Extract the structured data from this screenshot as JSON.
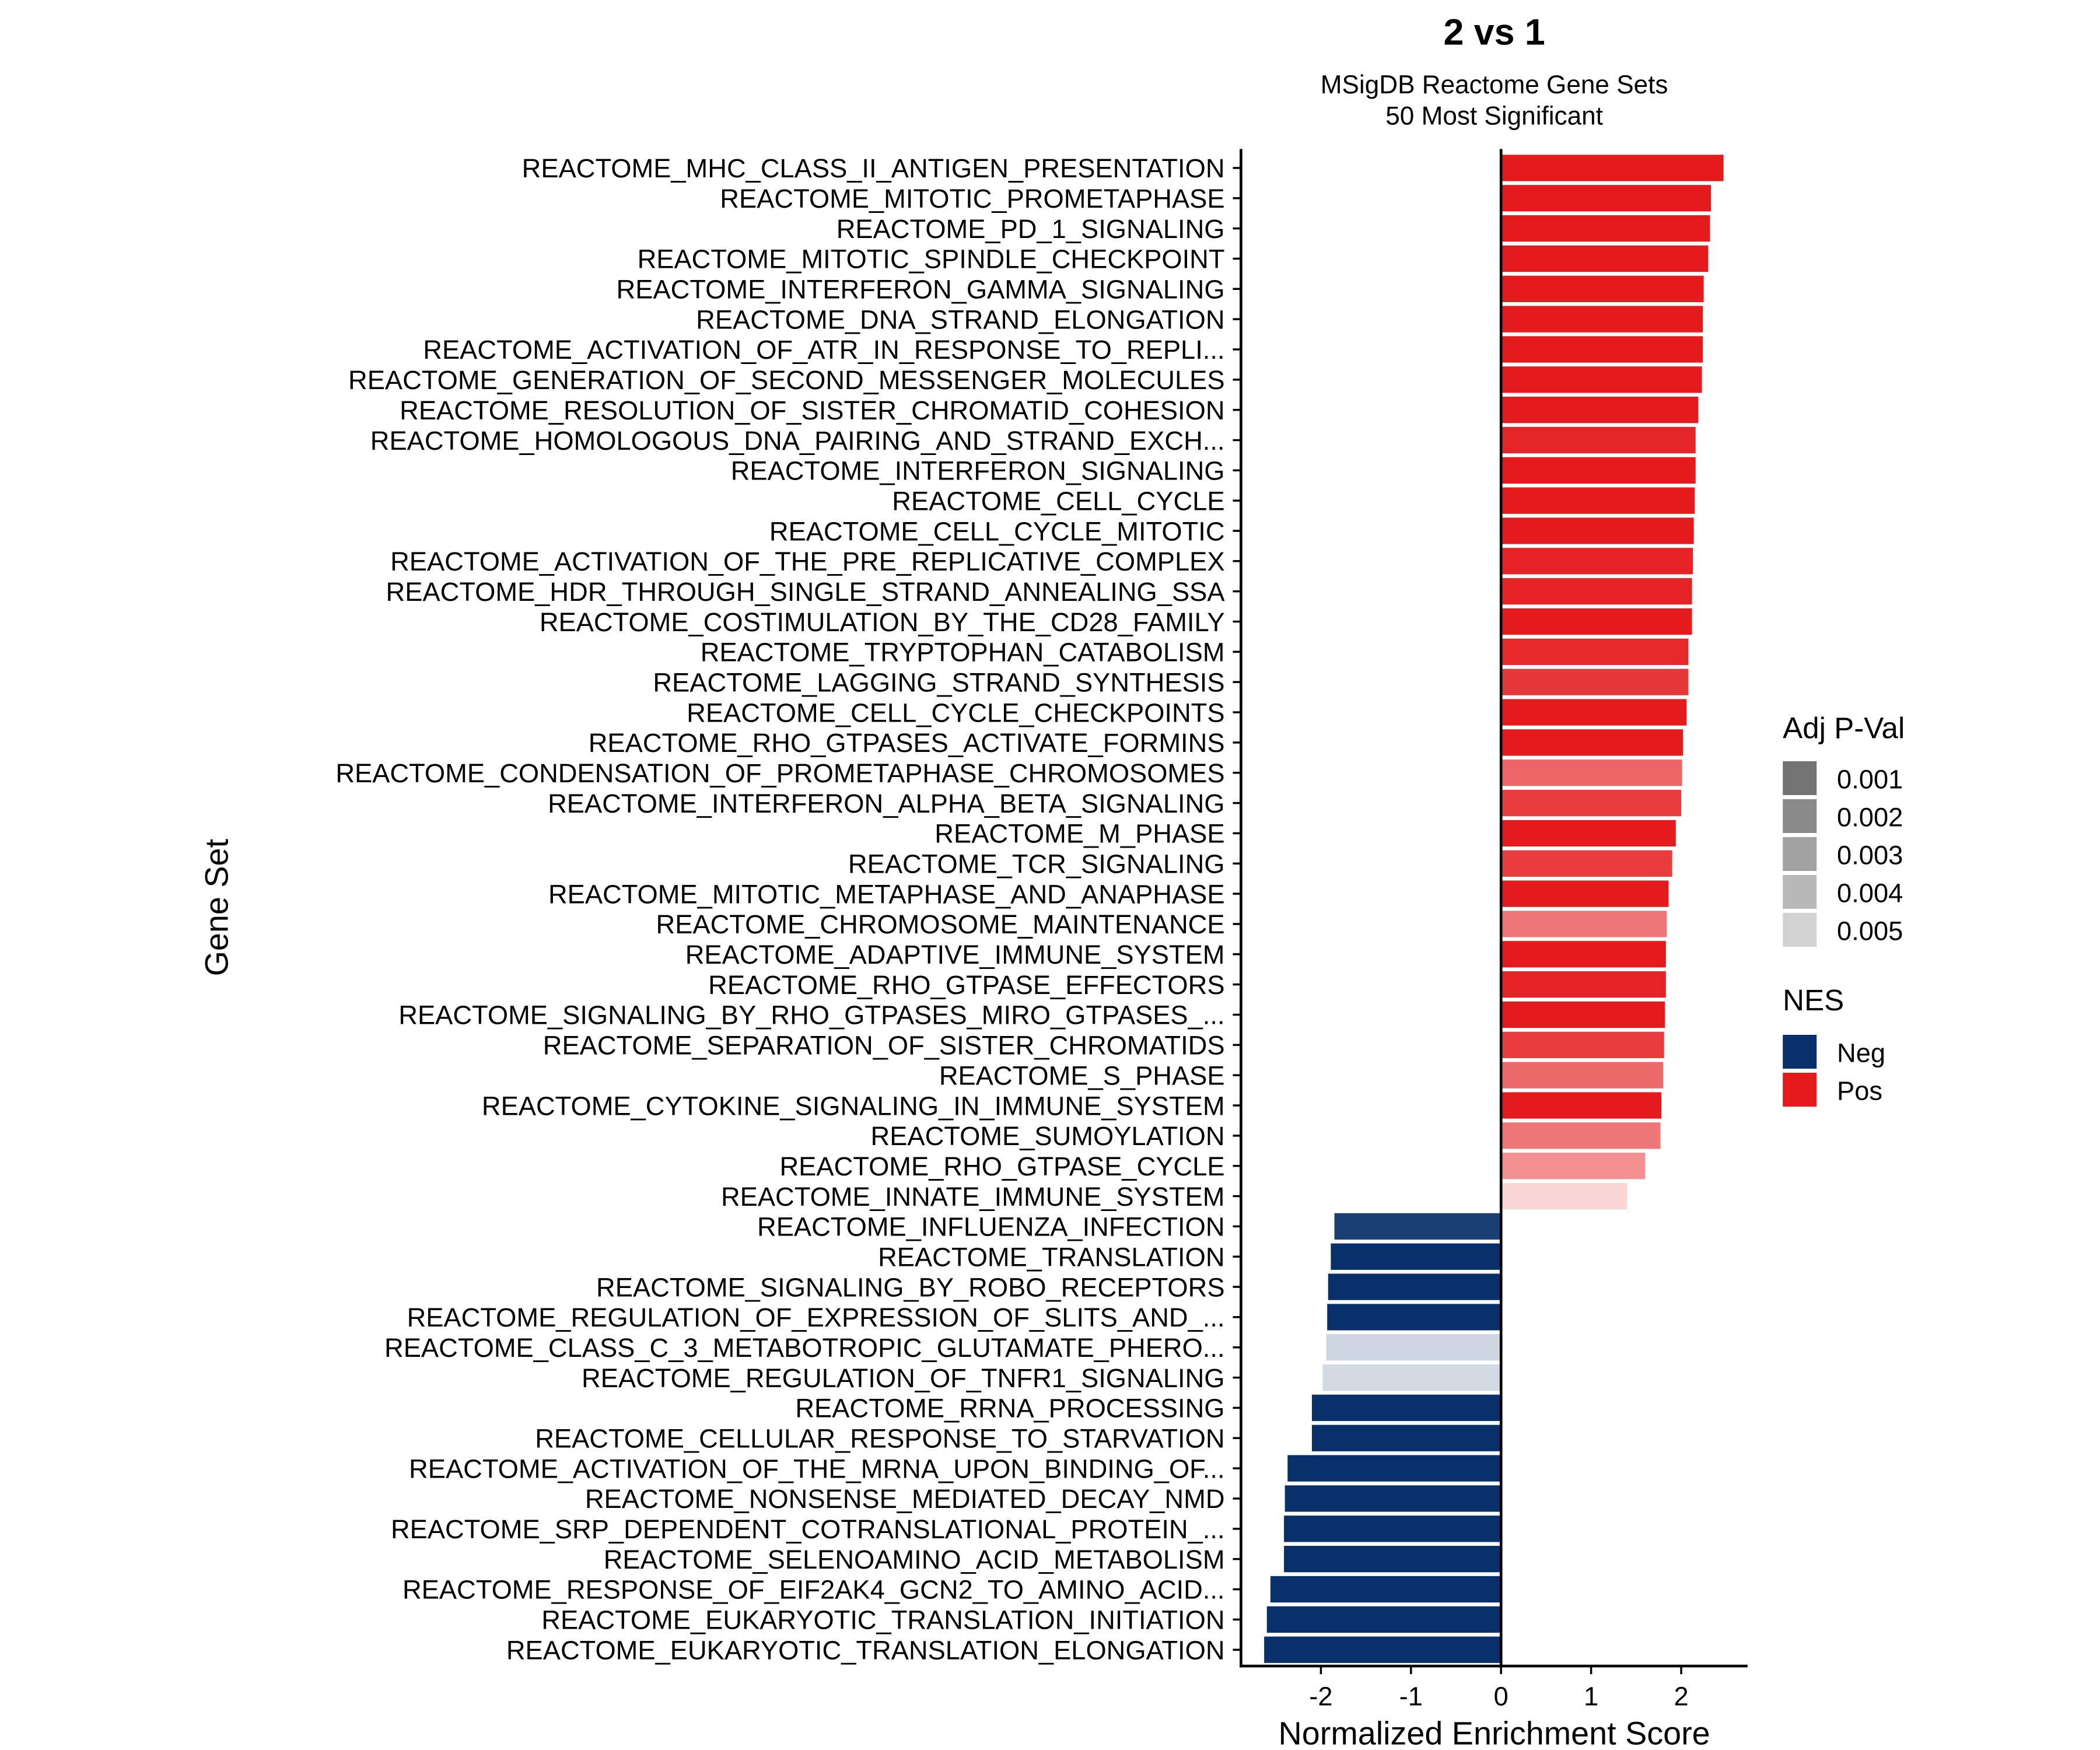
{
  "chart_data": {
    "type": "bar",
    "orientation": "horizontal",
    "title": "2 vs 1",
    "subtitle": [
      "MSigDB Reactome Gene Sets",
      "50 Most Significant"
    ],
    "xlabel": "Normalized Enrichment Score",
    "ylabel": "Gene Set",
    "xlim": [
      -2.9,
      2.7
    ],
    "xticks": [
      -2,
      -1,
      0,
      1,
      2
    ],
    "xtick_labels": [
      "-2",
      "-1",
      "0",
      "1",
      "2"
    ],
    "grid": false,
    "colors": {
      "Neg": "#08306b",
      "Pos": "#e41a1c"
    },
    "legend_padj": {
      "title": "Adj P-Val",
      "entries": [
        {
          "label": "0.001",
          "color": "#737373"
        },
        {
          "label": "0.002",
          "color": "#8a8a8a"
        },
        {
          "label": "0.003",
          "color": "#a2a2a2"
        },
        {
          "label": "0.004",
          "color": "#b9b9b9"
        },
        {
          "label": "0.005",
          "color": "#d2d2d2"
        }
      ],
      "placement": "right"
    },
    "legend_nes": {
      "title": "NES",
      "entries": [
        {
          "label": "Neg",
          "color": "#08306b"
        },
        {
          "label": "Pos",
          "color": "#e41a1c"
        }
      ],
      "placement": "right"
    },
    "bars": [
      {
        "label": "REACTOME_MHC_CLASS_II_ANTIGEN_PRESENTATION",
        "nes": 2.47,
        "padj": 0.0005
      },
      {
        "label": "REACTOME_MITOTIC_PROMETAPHASE",
        "nes": 2.33,
        "padj": 0.0005
      },
      {
        "label": "REACTOME_PD_1_SIGNALING",
        "nes": 2.32,
        "padj": 0.0005
      },
      {
        "label": "REACTOME_MITOTIC_SPINDLE_CHECKPOINT",
        "nes": 2.3,
        "padj": 0.0005
      },
      {
        "label": "REACTOME_INTERFERON_GAMMA_SIGNALING",
        "nes": 2.25,
        "padj": 0.0005
      },
      {
        "label": "REACTOME_DNA_STRAND_ELONGATION",
        "nes": 2.24,
        "padj": 0.0005
      },
      {
        "label": "REACTOME_ACTIVATION_OF_ATR_IN_RESPONSE_TO_REPLI...",
        "nes": 2.24,
        "padj": 0.0005
      },
      {
        "label": "REACTOME_GENERATION_OF_SECOND_MESSENGER_MOLECULES",
        "nes": 2.23,
        "padj": 0.0005
      },
      {
        "label": "REACTOME_RESOLUTION_OF_SISTER_CHROMATID_COHESION",
        "nes": 2.19,
        "padj": 0.0005
      },
      {
        "label": "REACTOME_HOMOLOGOUS_DNA_PAIRING_AND_STRAND_EXCH...",
        "nes": 2.16,
        "padj": 0.0008
      },
      {
        "label": "REACTOME_INTERFERON_SIGNALING",
        "nes": 2.16,
        "padj": 0.0005
      },
      {
        "label": "REACTOME_CELL_CYCLE",
        "nes": 2.15,
        "padj": 0.0005
      },
      {
        "label": "REACTOME_CELL_CYCLE_MITOTIC",
        "nes": 2.14,
        "padj": 0.0005
      },
      {
        "label": "REACTOME_ACTIVATION_OF_THE_PRE_REPLICATIVE_COMPLEX",
        "nes": 2.13,
        "padj": 0.0007
      },
      {
        "label": "REACTOME_HDR_THROUGH_SINGLE_STRAND_ANNEALING_SSA",
        "nes": 2.12,
        "padj": 0.0007
      },
      {
        "label": "REACTOME_COSTIMULATION_BY_THE_CD28_FAMILY",
        "nes": 2.12,
        "padj": 0.0005
      },
      {
        "label": "REACTOME_TRYPTOPHAN_CATABOLISM",
        "nes": 2.08,
        "padj": 0.0009
      },
      {
        "label": "REACTOME_LAGGING_STRAND_SYNTHESIS",
        "nes": 2.08,
        "padj": 0.0012
      },
      {
        "label": "REACTOME_CELL_CYCLE_CHECKPOINTS",
        "nes": 2.06,
        "padj": 0.0005
      },
      {
        "label": "REACTOME_RHO_GTPASES_ACTIVATE_FORMINS",
        "nes": 2.02,
        "padj": 0.0005
      },
      {
        "label": "REACTOME_CONDENSATION_OF_PROMETAPHASE_CHROMOSOMES",
        "nes": 2.01,
        "padj": 0.0023
      },
      {
        "label": "REACTOME_INTERFERON_ALPHA_BETA_SIGNALING",
        "nes": 2.0,
        "padj": 0.0013
      },
      {
        "label": "REACTOME_M_PHASE",
        "nes": 1.94,
        "padj": 0.0005
      },
      {
        "label": "REACTOME_TCR_SIGNALING",
        "nes": 1.9,
        "padj": 0.0013
      },
      {
        "label": "REACTOME_MITOTIC_METAPHASE_AND_ANAPHASE",
        "nes": 1.86,
        "padj": 0.0005
      },
      {
        "label": "REACTOME_CHROMOSOME_MAINTENANCE",
        "nes": 1.84,
        "padj": 0.0027
      },
      {
        "label": "REACTOME_ADAPTIVE_IMMUNE_SYSTEM",
        "nes": 1.83,
        "padj": 0.0005
      },
      {
        "label": "REACTOME_RHO_GTPASE_EFFECTORS",
        "nes": 1.83,
        "padj": 0.0007
      },
      {
        "label": "REACTOME_SIGNALING_BY_RHO_GTPASES_MIRO_GTPASES_...",
        "nes": 1.82,
        "padj": 0.0005
      },
      {
        "label": "REACTOME_SEPARATION_OF_SISTER_CHROMATIDS",
        "nes": 1.81,
        "padj": 0.0013
      },
      {
        "label": "REACTOME_S_PHASE",
        "nes": 1.8,
        "padj": 0.0024
      },
      {
        "label": "REACTOME_CYTOKINE_SIGNALING_IN_IMMUNE_SYSTEM",
        "nes": 1.78,
        "padj": 0.0005
      },
      {
        "label": "REACTOME_SUMOYLATION",
        "nes": 1.77,
        "padj": 0.0027
      },
      {
        "label": "REACTOME_RHO_GTPASE_CYCLE",
        "nes": 1.6,
        "padj": 0.0033
      },
      {
        "label": "REACTOME_INNATE_IMMUNE_SYSTEM",
        "nes": 1.4,
        "padj": 0.005
      },
      {
        "label": "REACTOME_INFLUENZA_INFECTION",
        "nes": -1.85,
        "padj": 0.0009
      },
      {
        "label": "REACTOME_TRANSLATION",
        "nes": -1.89,
        "padj": 0.0005
      },
      {
        "label": "REACTOME_SIGNALING_BY_ROBO_RECEPTORS",
        "nes": -1.92,
        "padj": 0.0005
      },
      {
        "label": "REACTOME_REGULATION_OF_EXPRESSION_OF_SLITS_AND_...",
        "nes": -1.93,
        "padj": 0.0005
      },
      {
        "label": "REACTOME_CLASS_C_3_METABOTROPIC_GLUTAMATE_PHERO...",
        "nes": -1.94,
        "padj": 0.0049
      },
      {
        "label": "REACTOME_REGULATION_OF_TNFR1_SIGNALING",
        "nes": -1.98,
        "padj": 0.005
      },
      {
        "label": "REACTOME_RRNA_PROCESSING",
        "nes": -2.1,
        "padj": 0.0005
      },
      {
        "label": "REACTOME_CELLULAR_RESPONSE_TO_STARVATION",
        "nes": -2.1,
        "padj": 0.0005
      },
      {
        "label": "REACTOME_ACTIVATION_OF_THE_MRNA_UPON_BINDING_OF...",
        "nes": -2.37,
        "padj": 0.0005
      },
      {
        "label": "REACTOME_NONSENSE_MEDIATED_DECAY_NMD",
        "nes": -2.4,
        "padj": 0.0005
      },
      {
        "label": "REACTOME_SRP_DEPENDENT_COTRANSLATIONAL_PROTEIN_...",
        "nes": -2.41,
        "padj": 0.0005
      },
      {
        "label": "REACTOME_SELENOAMINO_ACID_METABOLISM",
        "nes": -2.41,
        "padj": 0.0005
      },
      {
        "label": "REACTOME_RESPONSE_OF_EIF2AK4_GCN2_TO_AMINO_ACID...",
        "nes": -2.56,
        "padj": 0.0005
      },
      {
        "label": "REACTOME_EUKARYOTIC_TRANSLATION_INITIATION",
        "nes": -2.6,
        "padj": 0.0005
      },
      {
        "label": "REACTOME_EUKARYOTIC_TRANSLATION_ELONGATION",
        "nes": -2.63,
        "padj": 0.0005
      }
    ]
  }
}
